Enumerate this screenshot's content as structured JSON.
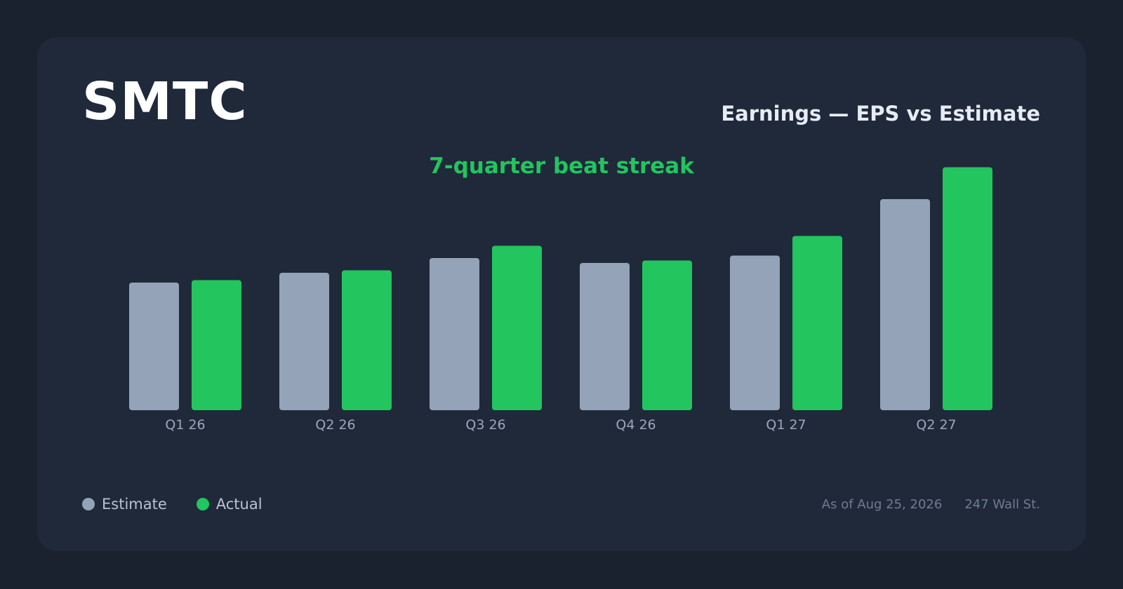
{
  "header": {
    "ticker": "SMTC",
    "title": "Earnings — EPS vs Estimate",
    "subtitle": "7-quarter beat streak"
  },
  "legend": {
    "estimate_label": "Estimate",
    "actual_label": "Actual"
  },
  "footer": {
    "as_of": "As of Aug 25, 2026",
    "source": "247 Wall St."
  },
  "colors": {
    "estimate": "#94a3b8",
    "actual": "#22c55e",
    "background": "#1a2230",
    "card": "#1f293a"
  },
  "chart_data": {
    "type": "bar",
    "categories": [
      "Q1 26",
      "Q2 26",
      "Q3 26",
      "Q4 26",
      "Q1 27",
      "Q2 27"
    ],
    "series": [
      {
        "name": "Estimate",
        "values": [
          0.52,
          0.56,
          0.62,
          0.6,
          0.63,
          0.86
        ]
      },
      {
        "name": "Actual",
        "values": [
          0.53,
          0.57,
          0.67,
          0.61,
          0.71,
          0.99
        ]
      }
    ],
    "ylim": [
      0,
      1.0
    ],
    "grid": false,
    "legend_position": "bottom-left"
  }
}
